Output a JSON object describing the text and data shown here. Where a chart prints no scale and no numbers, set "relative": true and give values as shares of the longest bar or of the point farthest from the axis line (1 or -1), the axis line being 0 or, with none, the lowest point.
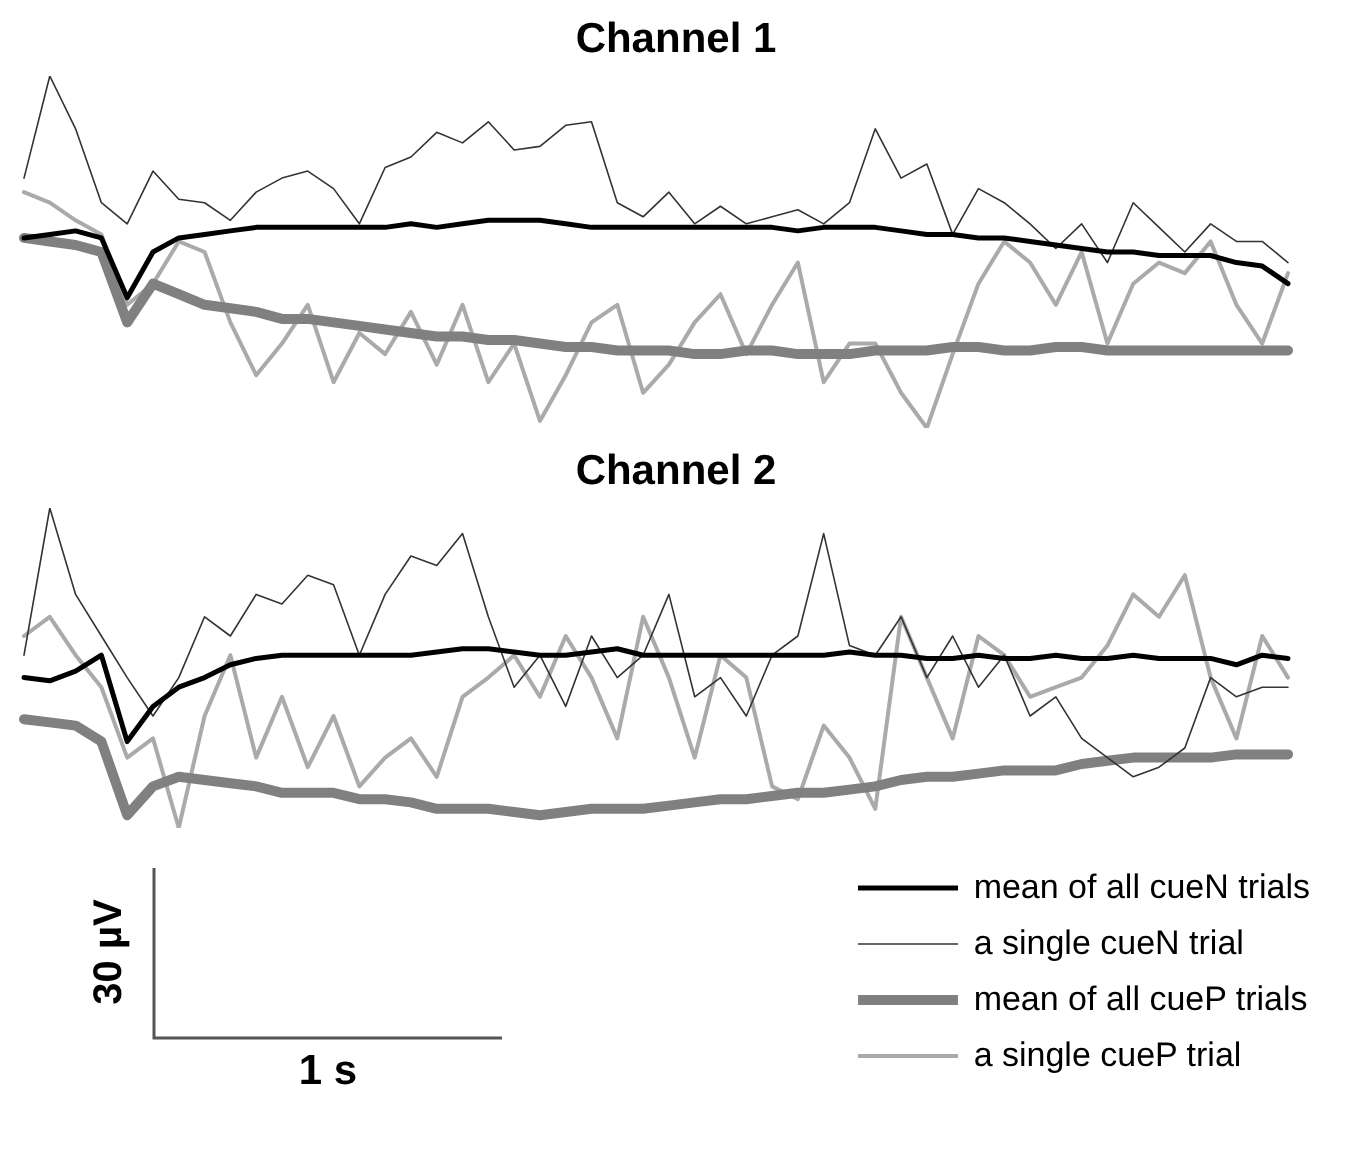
{
  "chart_data": [
    {
      "type": "line",
      "title": "Channel 1",
      "relative": true,
      "legend": false,
      "categories": [
        null,
        null,
        null,
        null,
        null,
        null,
        null,
        null,
        null,
        null,
        null,
        null,
        null,
        null,
        null,
        null,
        null,
        null,
        null,
        null,
        null,
        null,
        null,
        null,
        null,
        null,
        null,
        null,
        null,
        null,
        null,
        null,
        null,
        null,
        null,
        null,
        null,
        null,
        null,
        null,
        null,
        null,
        null,
        null,
        null,
        null,
        null,
        null,
        null,
        null
      ],
      "series": [
        {
          "color": "#000000",
          "values": [
            0.54,
            0.55,
            0.56,
            0.54,
            0.37,
            0.5,
            0.54,
            0.55,
            0.56,
            0.57,
            0.57,
            0.57,
            0.57,
            0.57,
            0.57,
            0.58,
            0.57,
            0.58,
            0.59,
            0.59,
            0.59,
            0.58,
            0.57,
            0.57,
            0.57,
            0.57,
            0.57,
            0.57,
            0.57,
            0.57,
            0.56,
            0.57,
            0.57,
            0.57,
            0.56,
            0.55,
            0.55,
            0.54,
            0.54,
            0.53,
            0.52,
            0.51,
            0.5,
            0.5,
            0.49,
            0.49,
            0.49,
            0.47,
            0.46,
            0.41
          ]
        },
        {
          "color": "#333333",
          "values": [
            0.71,
            1,
            0.85,
            0.64,
            0.58,
            0.73,
            0.65,
            0.64,
            0.59,
            0.67,
            0.71,
            0.73,
            0.68,
            0.58,
            0.74,
            0.77,
            0.84,
            0.81,
            0.87,
            0.79,
            0.8,
            0.86,
            0.87,
            0.64,
            0.6,
            0.67,
            0.58,
            0.63,
            0.58,
            0.6,
            0.62,
            0.58,
            0.64,
            0.85,
            0.71,
            0.75,
            0.55,
            0.68,
            0.64,
            0.58,
            0.51,
            0.58,
            0.47,
            0.64,
            0.57,
            0.5,
            0.58,
            0.53,
            0.53,
            0.47
          ]
        },
        {
          "color": "#808080",
          "values": [
            0.54,
            0.53,
            0.52,
            0.5,
            0.3,
            0.41,
            0.38,
            0.35,
            0.34,
            0.33,
            0.31,
            0.31,
            0.3,
            0.29,
            0.28,
            0.27,
            0.26,
            0.26,
            0.25,
            0.25,
            0.24,
            0.23,
            0.23,
            0.22,
            0.22,
            0.22,
            0.21,
            0.21,
            0.22,
            0.22,
            0.21,
            0.21,
            0.21,
            0.22,
            0.22,
            0.22,
            0.23,
            0.23,
            0.22,
            0.22,
            0.23,
            0.23,
            0.22,
            0.22,
            0.22,
            0.22,
            0.22,
            0.22,
            0.22,
            0.22
          ]
        },
        {
          "color": "#aaaaaa",
          "values": [
            0.67,
            0.64,
            0.59,
            0.55,
            0.35,
            0.41,
            0.53,
            0.5,
            0.3,
            0.15,
            0.24,
            0.35,
            0.13,
            0.27,
            0.21,
            0.33,
            0.18,
            0.35,
            0.13,
            0.24,
            0.02,
            0.15,
            0.3,
            0.35,
            0.1,
            0.18,
            0.3,
            0.38,
            0.21,
            0.35,
            0.47,
            0.13,
            0.24,
            0.24,
            0.1,
            0,
            0.21,
            0.41,
            0.53,
            0.47,
            0.35,
            0.5,
            0.24,
            0.41,
            0.47,
            0.44,
            0.53,
            0.35,
            0.24,
            0.44
          ]
        }
      ]
    },
    {
      "type": "line",
      "title": "Channel 2",
      "relative": true,
      "legend": "bottom right",
      "annotations": [
        "30 µV",
        "1 s"
      ],
      "categories": [
        null,
        null,
        null,
        null,
        null,
        null,
        null,
        null,
        null,
        null,
        null,
        null,
        null,
        null,
        null,
        null,
        null,
        null,
        null,
        null,
        null,
        null,
        null,
        null,
        null,
        null,
        null,
        null,
        null,
        null,
        null,
        null,
        null,
        null,
        null,
        null,
        null,
        null,
        null,
        null,
        null,
        null,
        null,
        null,
        null,
        null,
        null,
        null,
        null,
        null
      ],
      "series": [
        {
          "name": "mean of all cueN trials",
          "color": "#000000",
          "values": [
            0.47,
            0.46,
            0.49,
            0.54,
            0.27,
            0.38,
            0.44,
            0.47,
            0.51,
            0.53,
            0.54,
            0.54,
            0.54,
            0.54,
            0.54,
            0.54,
            0.55,
            0.56,
            0.56,
            0.55,
            0.54,
            0.54,
            0.55,
            0.56,
            0.54,
            0.54,
            0.54,
            0.54,
            0.54,
            0.54,
            0.54,
            0.54,
            0.55,
            0.54,
            0.54,
            0.53,
            0.53,
            0.54,
            0.53,
            0.53,
            0.54,
            0.53,
            0.53,
            0.54,
            0.53,
            0.53,
            0.53,
            0.51,
            0.54,
            0.53
          ]
        },
        {
          "name": "a single cueN trial",
          "color": "#333333",
          "values": [
            0.54,
            1,
            0.73,
            0.6,
            0.47,
            0.35,
            0.47,
            0.66,
            0.6,
            0.73,
            0.7,
            0.79,
            0.76,
            0.54,
            0.73,
            0.85,
            0.82,
            0.92,
            0.66,
            0.44,
            0.54,
            0.38,
            0.6,
            0.47,
            0.54,
            0.73,
            0.41,
            0.47,
            0.35,
            0.54,
            0.6,
            0.92,
            0.57,
            0.54,
            0.66,
            0.47,
            0.6,
            0.44,
            0.54,
            0.35,
            0.41,
            0.28,
            0.22,
            0.16,
            0.19,
            0.25,
            0.47,
            0.41,
            0.44,
            0.44
          ]
        },
        {
          "name": "mean of all cueP trials",
          "color": "#808080",
          "values": [
            0.34,
            0.33,
            0.32,
            0.27,
            0.04,
            0.13,
            0.16,
            0.15,
            0.14,
            0.13,
            0.11,
            0.11,
            0.11,
            0.09,
            0.09,
            0.08,
            0.06,
            0.06,
            0.06,
            0.05,
            0.04,
            0.05,
            0.06,
            0.06,
            0.06,
            0.07,
            0.08,
            0.09,
            0.09,
            0.1,
            0.11,
            0.11,
            0.12,
            0.13,
            0.15,
            0.16,
            0.16,
            0.17,
            0.18,
            0.18,
            0.18,
            0.2,
            0.21,
            0.22,
            0.22,
            0.22,
            0.22,
            0.23,
            0.23,
            0.23
          ]
        },
        {
          "name": "a single cueP trial",
          "color": "#aaaaaa",
          "values": [
            0.6,
            0.66,
            0.54,
            0.44,
            0.22,
            0.28,
            0,
            0.35,
            0.54,
            0.22,
            0.41,
            0.19,
            0.35,
            0.13,
            0.22,
            0.28,
            0.16,
            0.41,
            0.47,
            0.54,
            0.41,
            0.6,
            0.47,
            0.28,
            0.66,
            0.47,
            0.22,
            0.54,
            0.47,
            0.13,
            0.09,
            0.32,
            0.22,
            0.06,
            0.66,
            0.47,
            0.28,
            0.6,
            0.54,
            0.41,
            0.44,
            0.47,
            0.57,
            0.73,
            0.66,
            0.79,
            0.47,
            0.28,
            0.6,
            0.47
          ]
        }
      ]
    }
  ]
}
